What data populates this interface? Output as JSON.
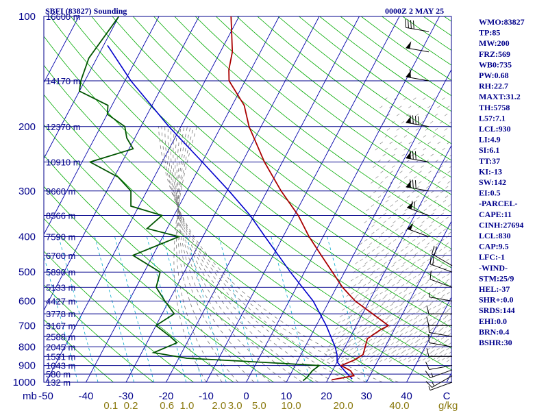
{
  "header": {
    "title": "SBFI (83827) Sounding",
    "time": "0000Z  2 MAY 25"
  },
  "indices": [
    "WMO:83827",
    "TP:85",
    "MW:200",
    "FRZ:569",
    "WB0:735",
    "PW:0.68",
    "RH:22.7",
    "MAXT:31.2",
    "TH:5758",
    "L57:7.1",
    "LCL:930",
    "LI:4.9",
    "SI:6.1",
    "TT:37",
    "KI:-13",
    "SW:142",
    "EI:0.5",
    "-PARCEL-",
    "CAPE:11",
    "CINH:27694",
    "LCL:830",
    "CAP:9.5",
    "LFC:-1",
    "-WIND-",
    "STM:25/9",
    "HEL:-37",
    "SHR+:0.0",
    "SRDS:144",
    "EHI:0.0",
    "BRN:0.4",
    "BSHR:30"
  ],
  "colors": {
    "isobar": "#00008b",
    "isotherm": "#0000aa",
    "dry_adiabat": "#00aa00",
    "moist_adiabat": "#777777",
    "mixing_ratio": "#00aacc",
    "temperature": "#aa0000",
    "dewpoint": "#005500",
    "parcel": "#0000cc"
  },
  "chart_data": {
    "type": "skew-t",
    "pressure_unit_label": "mb",
    "mixing_ratio_unit_label": "g/kg",
    "pressure_range": [
      1000,
      100
    ],
    "temperature_range": [
      -50,
      50
    ],
    "pressure_levels": [
      {
        "p": 100,
        "label": "100",
        "height": "16600 m"
      },
      {
        "p": 150,
        "label": "",
        "height": "14170 m"
      },
      {
        "p": 200,
        "label": "200",
        "height": "12370 m"
      },
      {
        "p": 250,
        "label": "",
        "height": "10910 m"
      },
      {
        "p": 300,
        "label": "300",
        "height": "9660 m"
      },
      {
        "p": 350,
        "label": "",
        "height": "8566 m"
      },
      {
        "p": 400,
        "label": "400",
        "height": "7590 m"
      },
      {
        "p": 450,
        "label": "",
        "height": "6700 m"
      },
      {
        "p": 500,
        "label": "500",
        "height": "5890 m"
      },
      {
        "p": 550,
        "label": "",
        "height": "5133 m"
      },
      {
        "p": 600,
        "label": "600",
        "height": "4427 m"
      },
      {
        "p": 650,
        "label": "",
        "height": "3778 m"
      },
      {
        "p": 700,
        "label": "700",
        "height": "3167 m"
      },
      {
        "p": 750,
        "label": "",
        "height": "2588 m"
      },
      {
        "p": 800,
        "label": "800",
        "height": "2045 m"
      },
      {
        "p": 850,
        "label": "",
        "height": "1531 m"
      },
      {
        "p": 900,
        "label": "900",
        "height": "1043 m"
      },
      {
        "p": 950,
        "label": "",
        "height": "580 m"
      },
      {
        "p": 1000,
        "label": "1000",
        "height": "132 m"
      }
    ],
    "temperature_ticks": [
      {
        "t": -50,
        "label": "-50"
      },
      {
        "t": -40,
        "label": "-40"
      },
      {
        "t": -30,
        "label": "-30"
      },
      {
        "t": -20,
        "label": "-20"
      },
      {
        "t": -10,
        "label": "-10"
      },
      {
        "t": 0,
        "label": "0"
      },
      {
        "t": 10,
        "label": "10"
      },
      {
        "t": 20,
        "label": "20"
      },
      {
        "t": 30,
        "label": "30"
      },
      {
        "t": 40,
        "label": "40"
      },
      {
        "t": 50,
        "label": "C"
      }
    ],
    "mixing_ratio_ticks": [
      "0.1",
      "0.2",
      "0.6",
      "1.0",
      "2.0",
      "3.0",
      "5.0",
      "10.0",
      "20.0",
      "40.0"
    ],
    "temperature_profile": [
      [
        985,
        21.0
      ],
      [
        960,
        26.0
      ],
      [
        930,
        24.5
      ],
      [
        900,
        21.5
      ],
      [
        870,
        24.0
      ],
      [
        840,
        25.5
      ],
      [
        800,
        25.0
      ],
      [
        760,
        24.5
      ],
      [
        720,
        26.5
      ],
      [
        700,
        28.0
      ],
      [
        650,
        22.5
      ],
      [
        600,
        16.5
      ],
      [
        550,
        11.5
      ],
      [
        500,
        7.0
      ],
      [
        450,
        2.0
      ],
      [
        400,
        -3.5
      ],
      [
        350,
        -9.0
      ],
      [
        300,
        -16.5
      ],
      [
        250,
        -24.5
      ],
      [
        200,
        -33.0
      ],
      [
        175,
        -37.0
      ],
      [
        150,
        -44.0
      ],
      [
        140,
        -45.5
      ],
      [
        125,
        -47.0
      ],
      [
        100,
        -52.0
      ]
    ],
    "dewpoint_profile": [
      [
        990,
        14.0
      ],
      [
        970,
        14.5
      ],
      [
        930,
        15.0
      ],
      [
        900,
        16.0
      ],
      [
        875,
        -4.5
      ],
      [
        860,
        -18.0
      ],
      [
        830,
        -27.0
      ],
      [
        780,
        -22.5
      ],
      [
        750,
        -25.0
      ],
      [
        700,
        -30.0
      ],
      [
        650,
        -27.0
      ],
      [
        600,
        -31.0
      ],
      [
        550,
        -35.0
      ],
      [
        500,
        -36.0
      ],
      [
        450,
        -45.0
      ],
      [
        400,
        -36.0
      ],
      [
        380,
        -45.0
      ],
      [
        350,
        -43.0
      ],
      [
        330,
        -52.0
      ],
      [
        300,
        -54.0
      ],
      [
        275,
        -59.0
      ],
      [
        250,
        -68.0
      ],
      [
        230,
        -59.0
      ],
      [
        215,
        -62.0
      ],
      [
        200,
        -64.0
      ],
      [
        185,
        -70.0
      ],
      [
        175,
        -71.0
      ],
      [
        160,
        -80.0
      ],
      [
        150,
        -81.0
      ],
      [
        130,
        -82.0
      ],
      [
        100,
        -80.0
      ]
    ],
    "parcel_profile": [
      [
        980,
        26.0
      ],
      [
        930,
        23.0
      ],
      [
        880,
        20.0
      ],
      [
        840,
        19.0
      ],
      [
        800,
        17.5
      ],
      [
        700,
        12.5
      ],
      [
        600,
        6.0
      ],
      [
        500,
        -3.5
      ],
      [
        400,
        -14.5
      ],
      [
        350,
        -21.0
      ],
      [
        300,
        -29.5
      ],
      [
        250,
        -40.0
      ],
      [
        200,
        -53.0
      ],
      [
        150,
        -68.5
      ],
      [
        120,
        -79.0
      ]
    ],
    "wind_barbs_right": [
      {
        "p": 1000,
        "dir": 250,
        "kt": 5
      },
      {
        "p": 960,
        "dir": 240,
        "kt": 15
      },
      {
        "p": 925,
        "dir": 250,
        "kt": 15
      },
      {
        "p": 900,
        "dir": 260,
        "kt": 10
      },
      {
        "p": 850,
        "dir": 270,
        "kt": 10
      },
      {
        "p": 800,
        "dir": 280,
        "kt": 10
      },
      {
        "p": 750,
        "dir": 280,
        "kt": 10
      },
      {
        "p": 700,
        "dir": 270,
        "kt": 10
      },
      {
        "p": 650,
        "dir": 270,
        "kt": 10
      },
      {
        "p": 600,
        "dir": 280,
        "kt": 5
      },
      {
        "p": 550,
        "dir": 290,
        "kt": 10
      },
      {
        "p": 500,
        "dir": 290,
        "kt": 20
      },
      {
        "p": 480,
        "dir": 300,
        "kt": 20
      }
    ],
    "wind_barbs_upper": [
      {
        "p": 400,
        "dir": 290,
        "kt": 50
      },
      {
        "p": 350,
        "dir": 290,
        "kt": 70
      },
      {
        "p": 300,
        "dir": 280,
        "kt": 80
      },
      {
        "p": 250,
        "dir": 280,
        "kt": 80
      },
      {
        "p": 200,
        "dir": 280,
        "kt": 90
      },
      {
        "p": 150,
        "dir": 280,
        "kt": 60
      },
      {
        "p": 125,
        "dir": 280,
        "kt": 50
      },
      {
        "p": 110,
        "dir": 280,
        "kt": 40
      }
    ]
  }
}
